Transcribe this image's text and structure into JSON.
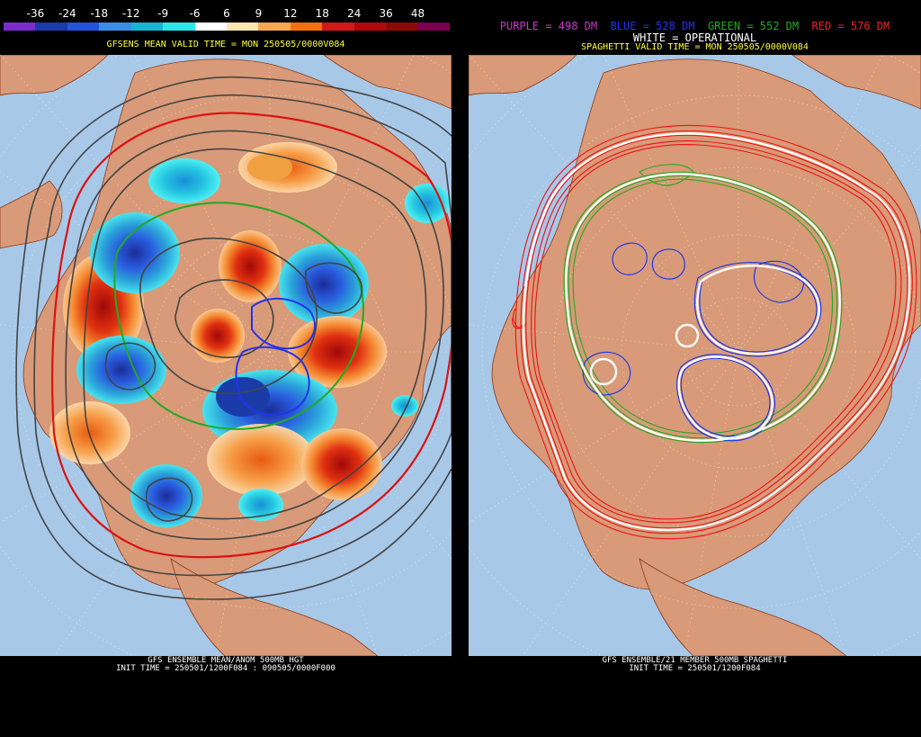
{
  "left": {
    "legend_values": [
      "-36",
      "-24",
      "-18",
      "-12",
      "-9",
      "-6",
      "6",
      "9",
      "12",
      "18",
      "24",
      "36",
      "48"
    ],
    "legend_colors": [
      "#7c2ccc",
      "#1a3ca8",
      "#2355d8",
      "#3a8ee6",
      "#19b4d0",
      "#2ee6ea",
      "#ffffff",
      "#fde6b0",
      "#f8a850",
      "#f07010",
      "#d01818",
      "#b0080c",
      "#8a0a0a",
      "#7a0050"
    ],
    "valid_time": "GFSENS MEAN VALID TIME = MON 250505/0000V084",
    "title": "GFS ENSEMBLE MEAN/ANOM 500MB HGT",
    "init_time": "INIT TIME = 250501/1200F084 : 090505/0000F000"
  },
  "right": {
    "legend": [
      {
        "text": "PURPLE = 498 DM",
        "color": "#cc33cc"
      },
      {
        "text": "BLUE = 528 DM",
        "color": "#2233ee"
      },
      {
        "text": "GREEN = 552 DM",
        "color": "#22aa22"
      },
      {
        "text": "RED = 576 DM",
        "color": "#ee2222"
      }
    ],
    "legend_operational": "WHITE = OPERATIONAL",
    "valid_time": "SPAGHETTI VALID TIME = MON 250505/0000V084",
    "title": "GFS ENSEMBLE/21 MEMBER 500MB SPAGHETTI",
    "init_time": "INIT TIME = 250501/1200F084"
  },
  "map": {
    "ocean_color": "#a8c8e8",
    "land_color": "#d89a78",
    "border_color": "#8a3a1a"
  }
}
